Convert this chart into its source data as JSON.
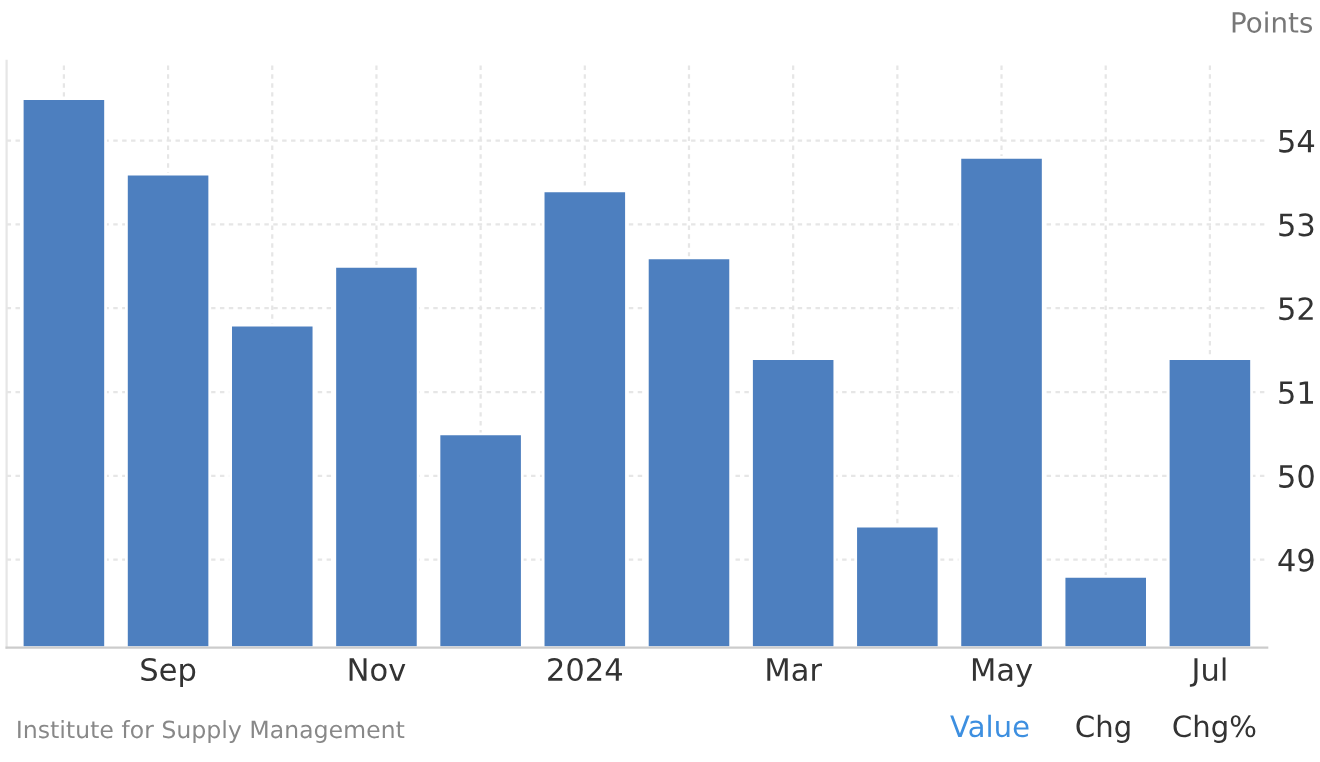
{
  "chart_data": {
    "type": "bar",
    "ylabel": "Points",
    "categories": [
      null,
      "Sep",
      null,
      "Nov",
      null,
      "2024",
      null,
      "Mar",
      null,
      "May",
      null,
      "Jul"
    ],
    "values": [
      54.5,
      53.6,
      51.8,
      52.5,
      50.5,
      53.4,
      52.6,
      51.4,
      49.4,
      53.8,
      48.8,
      51.4
    ],
    "color": "#4d7fbf",
    "ylim": [
      47.95,
      54.95
    ],
    "yticks": [
      49,
      50,
      51,
      52,
      53,
      54
    ],
    "grid": true,
    "annotations": [
      "Institute for Supply Management",
      "Value",
      "Chg",
      "Chg%"
    ]
  }
}
